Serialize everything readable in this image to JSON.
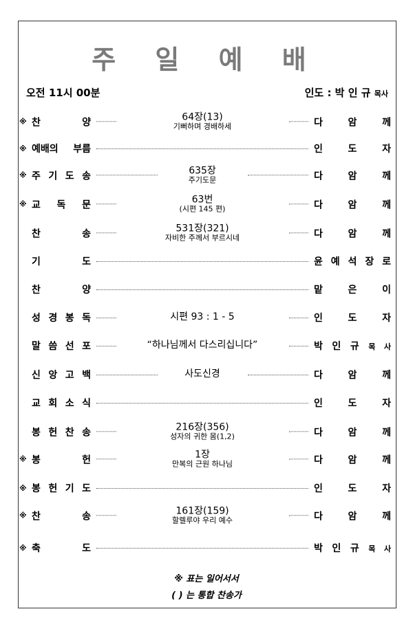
{
  "title": "주 일 예 배",
  "header": {
    "time": "오전 11시 00분",
    "leader_prefix": "인도 : 박 인 규",
    "leader_suffix": "목사"
  },
  "rows": [
    {
      "star": "※",
      "label": "찬 양",
      "main": "64장(13)",
      "sub": "기뻐하며 경배하세",
      "role": "다 암 께"
    },
    {
      "star": "※",
      "label": "예배의 부름",
      "main": "",
      "sub": "",
      "role": "인 도 자"
    },
    {
      "star": "※",
      "label": "주 기 도 송",
      "main": "635장",
      "sub": "주기도문",
      "role": "다 암 께"
    },
    {
      "star": "※",
      "label": "교 독 문",
      "main": "63번",
      "sub": "(시편 145 편)",
      "role": "다 암 께"
    },
    {
      "star": "",
      "label": "찬 송",
      "main": "531장(321)",
      "sub": "자비한 주께서 부르시네",
      "role": "다 암 께"
    },
    {
      "star": "",
      "label": "기 도",
      "main": "",
      "sub": "",
      "role": "윤 예 석 장 로"
    },
    {
      "star": "",
      "label": "찬 양",
      "main": "",
      "sub": "",
      "role": "맡 은 이"
    },
    {
      "star": "",
      "label": "성 경 봉 독",
      "main": "시편 93 : 1 - 5",
      "sub": "",
      "role": "인 도 자"
    },
    {
      "star": "",
      "label": "말 씀 선 포",
      "main": "“하나님께서 다스리십니다”",
      "sub": "",
      "role": "박 인 규",
      "role_small": "목 사"
    },
    {
      "star": "",
      "label": "신 앙 고 백",
      "main": "사도신경",
      "sub": "",
      "role": "다 암 께"
    },
    {
      "star": "",
      "label": "교 회 소 식",
      "main": "",
      "sub": "",
      "role": "인 도 자"
    },
    {
      "star": "",
      "label": "봉 헌 찬 송",
      "main": "216장(356)",
      "sub": "성자의 귀한 몸(1,2)",
      "role": "다 암 께"
    },
    {
      "star": "※",
      "label": "봉 헌",
      "main": "1장",
      "sub": "만복의 근원 하나님",
      "role": "다 암 께"
    },
    {
      "star": "※",
      "label": "봉 헌 기 도",
      "main": "",
      "sub": "",
      "role": "인 도 자"
    },
    {
      "star": "※",
      "label": "찬 송",
      "main": "161장(159)",
      "sub": "할렐루야 우리 예수",
      "role": "다 암 께"
    },
    {
      "star": "※",
      "label": "축 도",
      "main": "",
      "sub": "",
      "role": "박 인 규",
      "role_small": "목 사"
    }
  ],
  "footer": {
    "line1": "※ 표는 일어서서",
    "line2": "( ) 는 통합 찬송가"
  }
}
